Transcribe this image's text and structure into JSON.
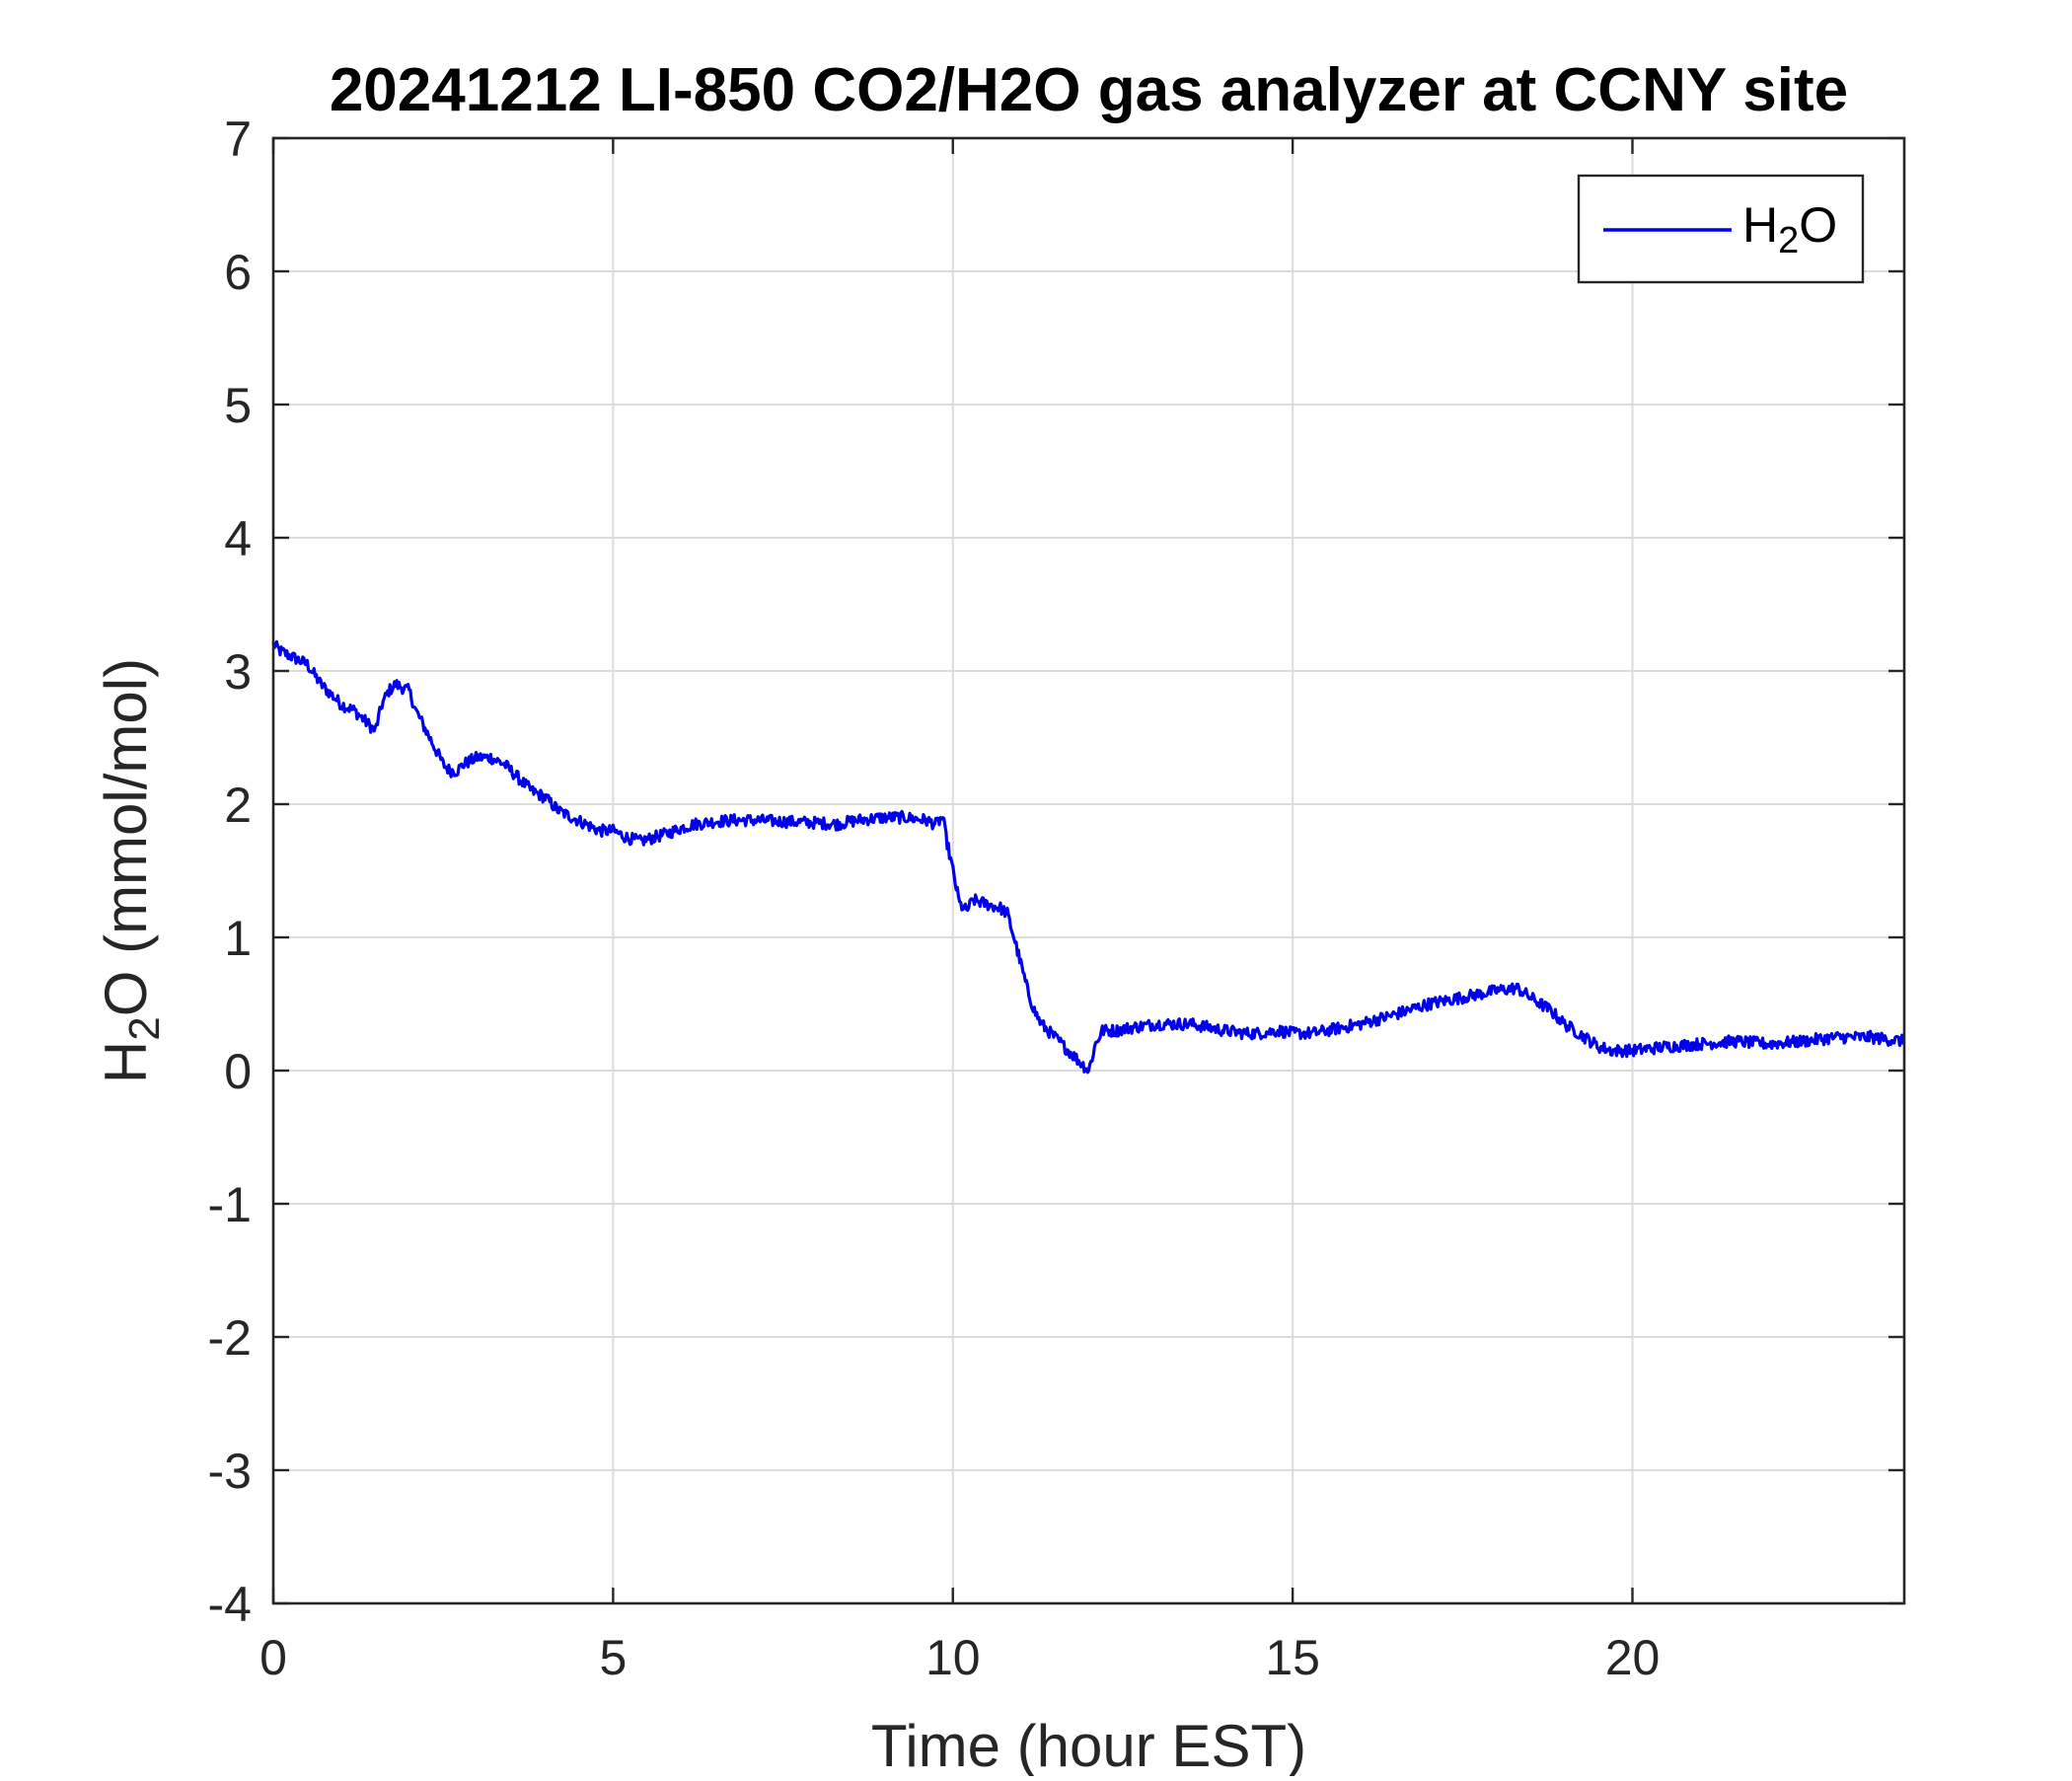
{
  "chart_data": {
    "type": "line",
    "title": "20241212 LI-850 CO2/H2O gas analyzer at CCNY site",
    "xlabel": {
      "main": "Time (hour EST)"
    },
    "ylabel": {
      "prefix": "H",
      "subscript": "2",
      "suffix": "O (mmol/mol)"
    },
    "xlim": [
      0,
      24
    ],
    "ylim": [
      -4,
      7
    ],
    "xticks": [
      0,
      5,
      10,
      15,
      20
    ],
    "yticks": [
      -4,
      -3,
      -2,
      -1,
      0,
      1,
      2,
      3,
      4,
      5,
      6,
      7
    ],
    "grid": true,
    "legend": {
      "placement": "top-right",
      "entries": [
        {
          "prefix": "H",
          "subscript": "2",
          "suffix": "O"
        }
      ]
    },
    "colors": {
      "line": "#0000ee",
      "axis": "#262626",
      "grid": "#dcdcdc"
    },
    "series": [
      {
        "x": [
          0,
          0.1,
          0.3,
          0.5,
          0.7,
          0.9,
          1.0,
          1.2,
          1.4,
          1.5,
          1.6,
          1.7,
          1.8,
          2.0,
          2.1,
          2.3,
          2.5,
          2.6,
          2.7,
          2.8,
          3.0,
          3.2,
          3.4,
          3.6,
          3.8,
          4.0,
          4.2,
          4.4,
          4.6,
          4.8,
          5.0,
          5.2,
          5.4,
          5.6,
          5.8,
          6.0,
          6.2,
          6.5,
          6.8,
          7.0,
          7.5,
          8.0,
          8.3,
          8.6,
          9.0,
          9.3,
          9.6,
          9.75,
          9.85,
          9.9,
          10.0,
          10.1,
          10.2,
          10.3,
          10.5,
          10.7,
          10.8,
          10.9,
          11.0,
          11.1,
          11.2,
          11.3,
          11.5,
          11.6,
          11.8,
          12.0,
          12.1,
          12.2,
          12.4,
          12.6,
          13.0,
          13.5,
          14.0,
          14.3,
          14.5,
          14.8,
          15.0,
          15.3,
          15.5,
          16.0,
          16.5,
          17.0,
          17.5,
          18.0,
          18.3,
          18.5,
          18.8,
          19.0,
          19.3,
          19.5,
          19.7,
          20.0,
          20.5,
          21.0,
          21.5,
          22.0,
          22.5,
          23.0,
          23.5,
          24.0
        ],
        "values": [
          3.2,
          3.15,
          3.1,
          3.05,
          2.9,
          2.8,
          2.75,
          2.7,
          2.6,
          2.55,
          2.75,
          2.85,
          2.9,
          2.85,
          2.7,
          2.5,
          2.3,
          2.25,
          2.25,
          2.3,
          2.35,
          2.35,
          2.3,
          2.2,
          2.1,
          2.05,
          1.95,
          1.9,
          1.85,
          1.8,
          1.8,
          1.75,
          1.72,
          1.75,
          1.78,
          1.82,
          1.85,
          1.87,
          1.88,
          1.88,
          1.87,
          1.86,
          1.85,
          1.88,
          1.9,
          1.9,
          1.88,
          1.85,
          1.9,
          1.75,
          1.5,
          1.25,
          1.2,
          1.28,
          1.25,
          1.22,
          1.18,
          1.0,
          0.8,
          0.6,
          0.45,
          0.35,
          0.25,
          0.2,
          0.1,
          0.0,
          0.2,
          0.3,
          0.3,
          0.32,
          0.35,
          0.35,
          0.3,
          0.28,
          0.28,
          0.3,
          0.28,
          0.28,
          0.3,
          0.35,
          0.42,
          0.5,
          0.55,
          0.6,
          0.62,
          0.55,
          0.45,
          0.35,
          0.25,
          0.18,
          0.15,
          0.15,
          0.18,
          0.2,
          0.22,
          0.2,
          0.22,
          0.25,
          0.25,
          0.22
        ]
      }
    ]
  }
}
